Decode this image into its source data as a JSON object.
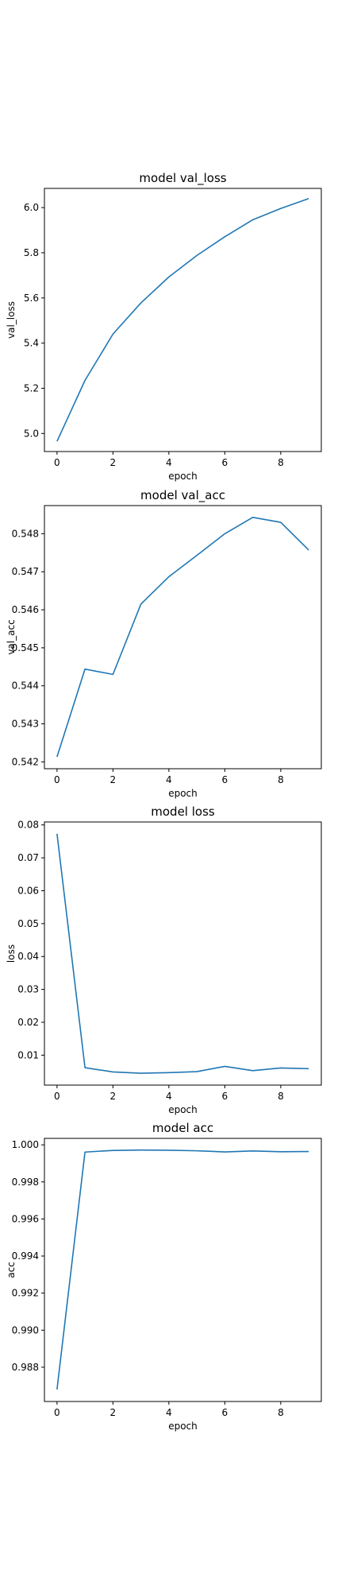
{
  "line_color": "#1f77b4",
  "chart_data": [
    {
      "type": "line",
      "title": "model val_loss",
      "xlabel": "epoch",
      "ylabel": "val_loss",
      "x": [
        0,
        1,
        2,
        3,
        4,
        5,
        6,
        7,
        8,
        9
      ],
      "series": [
        {
          "values": [
            4.965,
            5.235,
            5.44,
            5.578,
            5.693,
            5.788,
            5.871,
            5.946,
            5.996,
            6.04
          ]
        }
      ],
      "xlim": [
        -0.45,
        9.45
      ],
      "ylim": [
        4.92,
        6.085
      ],
      "xticks": [
        0,
        2,
        4,
        6,
        8
      ],
      "yticks": [
        5.0,
        5.2,
        5.4,
        5.6,
        5.8,
        6.0
      ],
      "ytick_labels": [
        "5.0",
        "5.2",
        "5.4",
        "5.6",
        "5.8",
        "6.0"
      ],
      "grid": false
    },
    {
      "type": "line",
      "title": "model val_acc",
      "xlabel": "epoch",
      "ylabel": "val_acc",
      "x": [
        0,
        1,
        2,
        3,
        4,
        5,
        6,
        7,
        8,
        9
      ],
      "series": [
        {
          "values": [
            0.54213,
            0.54444,
            0.5443,
            0.54615,
            0.54687,
            0.54743,
            0.548,
            0.54843,
            0.5483,
            0.54757
          ]
        }
      ],
      "xlim": [
        -0.45,
        9.45
      ],
      "ylim": [
        0.54182,
        0.54874
      ],
      "xticks": [
        0,
        2,
        4,
        6,
        8
      ],
      "yticks": [
        0.542,
        0.543,
        0.544,
        0.545,
        0.546,
        0.547,
        0.548
      ],
      "ytick_labels": [
        "0.542",
        "0.543",
        "0.544",
        "0.545",
        "0.546",
        "0.547",
        "0.548"
      ],
      "grid": false
    },
    {
      "type": "line",
      "title": "model loss",
      "xlabel": "epoch",
      "ylabel": "loss",
      "x": [
        0,
        1,
        2,
        3,
        4,
        5,
        6,
        7,
        8,
        9
      ],
      "series": [
        {
          "values": [
            0.0773,
            0.0062,
            0.0049,
            0.0045,
            0.0047,
            0.005,
            0.0066,
            0.0053,
            0.0061,
            0.0059
          ]
        }
      ],
      "xlim": [
        -0.45,
        9.45
      ],
      "ylim": [
        0.0009,
        0.0809
      ],
      "xticks": [
        0,
        2,
        4,
        6,
        8
      ],
      "yticks": [
        0.01,
        0.02,
        0.03,
        0.04,
        0.05,
        0.06,
        0.07,
        0.08
      ],
      "ytick_labels": [
        "0.01",
        "0.02",
        "0.03",
        "0.04",
        "0.05",
        "0.06",
        "0.07",
        "0.08"
      ],
      "grid": false
    },
    {
      "type": "line",
      "title": "model acc",
      "xlabel": "epoch",
      "ylabel": "acc",
      "x": [
        0,
        1,
        2,
        3,
        4,
        5,
        6,
        7,
        8,
        9
      ],
      "series": [
        {
          "values": [
            0.9868,
            0.99961,
            0.9997,
            0.99972,
            0.99971,
            0.99968,
            0.99962,
            0.99967,
            0.99963,
            0.99964
          ]
        }
      ],
      "xlim": [
        -0.45,
        9.45
      ],
      "ylim": [
        0.98615,
        1.00035
      ],
      "xticks": [
        0,
        2,
        4,
        6,
        8
      ],
      "yticks": [
        0.988,
        0.99,
        0.992,
        0.994,
        0.996,
        0.998,
        1.0
      ],
      "ytick_labels": [
        "0.988",
        "0.990",
        "0.992",
        "0.994",
        "0.996",
        "0.998",
        "1.000"
      ],
      "grid": false
    }
  ]
}
